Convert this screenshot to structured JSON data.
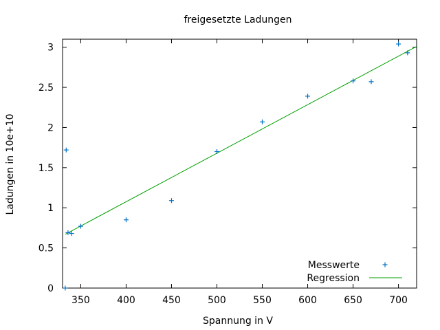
{
  "chart_data": {
    "type": "scatter",
    "title": "freigesetzte Ladungen",
    "xlabel": "Spannung in V",
    "ylabel": "Ladungen in 10e+10",
    "xlim": [
      330,
      720
    ],
    "ylim": [
      0,
      3.1
    ],
    "xticks": [
      350,
      400,
      450,
      500,
      550,
      600,
      650,
      700
    ],
    "yticks": [
      0,
      0.5,
      1,
      1.5,
      2,
      2.5,
      3
    ],
    "ytick_labels": [
      "0",
      "0.5",
      "1",
      "1.5",
      "2",
      "2.5",
      "3"
    ],
    "grid": false,
    "legend_position": "bottom-right",
    "series": [
      {
        "name": "Messwerte",
        "kind": "points",
        "marker": "+",
        "color": "#0072c6",
        "points": [
          [
            333,
            0.0
          ],
          [
            334,
            1.72
          ],
          [
            336,
            0.69
          ],
          [
            340,
            0.68
          ],
          [
            350,
            0.77
          ],
          [
            400,
            0.85
          ],
          [
            450,
            1.09
          ],
          [
            500,
            1.7
          ],
          [
            550,
            2.07
          ],
          [
            600,
            2.39
          ],
          [
            650,
            2.58
          ],
          [
            670,
            2.57
          ],
          [
            700,
            3.04
          ],
          [
            710,
            2.93
          ]
        ]
      },
      {
        "name": "Regression",
        "kind": "line",
        "color": "#00a000",
        "points": [
          [
            333,
            0.67
          ],
          [
            720,
            3.01
          ]
        ]
      }
    ]
  }
}
